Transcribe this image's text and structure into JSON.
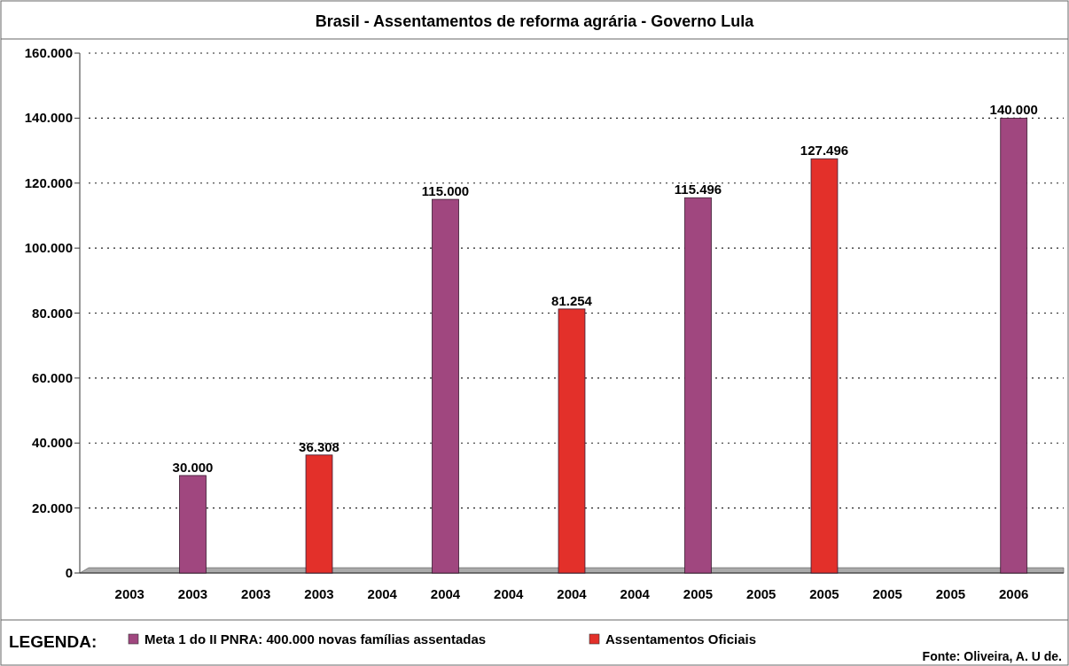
{
  "chart_data": {
    "type": "bar",
    "title": "Brasil - Assentamentos de reforma agrária - Governo Lula",
    "categories": [
      "2003",
      "2003",
      "2003",
      "2003",
      "2004",
      "2004",
      "2004",
      "2004",
      "2004",
      "2005",
      "2005",
      "2005",
      "2005",
      "2005",
      "2006"
    ],
    "series": [
      {
        "name": "Meta 1 do II PNRA: 400.000 novas famílias assentadas",
        "color": "#a0477f",
        "values": [
          null,
          30000,
          null,
          null,
          null,
          115000,
          null,
          null,
          null,
          115496,
          null,
          null,
          null,
          null,
          140000
        ],
        "value_labels": [
          null,
          "30.000",
          null,
          null,
          null,
          "115.000",
          null,
          null,
          null,
          "115.496",
          null,
          null,
          null,
          null,
          "140.000"
        ]
      },
      {
        "name": "Assentamentos Oficiais",
        "color": "#e3302a",
        "values": [
          null,
          null,
          null,
          36308,
          null,
          null,
          null,
          81254,
          null,
          null,
          null,
          127496,
          null,
          null,
          null
        ],
        "value_labels": [
          null,
          null,
          null,
          "36.308",
          null,
          null,
          null,
          "81.254",
          null,
          null,
          null,
          "127.496",
          null,
          null,
          null
        ]
      }
    ],
    "ylim": [
      0,
      160000
    ],
    "yticks": [
      {
        "value": 0,
        "label": "0"
      },
      {
        "value": 20000,
        "label": "20.000"
      },
      {
        "value": 40000,
        "label": "40.000"
      },
      {
        "value": 60000,
        "label": "60.000"
      },
      {
        "value": 80000,
        "label": "80.000"
      },
      {
        "value": 100000,
        "label": "100.000"
      },
      {
        "value": 120000,
        "label": "120.000"
      },
      {
        "value": 140000,
        "label": "140.000"
      },
      {
        "value": 160000,
        "label": "160.000"
      }
    ],
    "grid": "y",
    "legend": "bottom",
    "legend_title": "LEGENDA:",
    "annotations": [
      "Fonte: Oliveira, A. U de."
    ]
  }
}
